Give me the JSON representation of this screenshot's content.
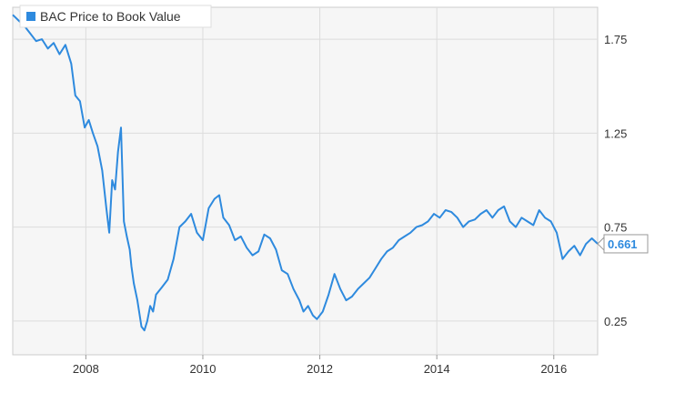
{
  "chart_data": {
    "type": "line",
    "title": "",
    "xlabel": "",
    "ylabel": "",
    "legend": {
      "placement": "top-left",
      "entries": [
        "BAC Price to Book Value"
      ]
    },
    "grid": true,
    "y_axis_side": "right",
    "xlim": [
      2006.75,
      2016.75
    ],
    "ylim": [
      0.07,
      1.92
    ],
    "x_ticks": [
      {
        "value": 2008,
        "label": "2008"
      },
      {
        "value": 2010,
        "label": "2010"
      },
      {
        "value": 2012,
        "label": "2012"
      },
      {
        "value": 2014,
        "label": "2014"
      },
      {
        "value": 2016,
        "label": "2016"
      }
    ],
    "y_ticks": [
      {
        "value": 0.25,
        "label": "0.25"
      },
      {
        "value": 0.75,
        "label": "0.75"
      },
      {
        "value": 1.25,
        "label": "1.25"
      },
      {
        "value": 1.75,
        "label": "1.75"
      }
    ],
    "last_value_label": "0.661",
    "colors": {
      "series": "#2e8ade",
      "grid": "#dcdcdc",
      "plot_bg": "#f6f6f6"
    },
    "series": [
      {
        "name": "BAC Price to Book Value",
        "x": [
          2006.75,
          2006.85,
          2006.95,
          2007.05,
          2007.15,
          2007.25,
          2007.35,
          2007.45,
          2007.55,
          2007.65,
          2007.75,
          2007.82,
          2007.9,
          2007.98,
          2008.05,
          2008.12,
          2008.2,
          2008.28,
          2008.35,
          2008.4,
          2008.45,
          2008.5,
          2008.55,
          2008.6,
          2008.65,
          2008.7,
          2008.75,
          2008.78,
          2008.82,
          2008.88,
          2008.95,
          2009.0,
          2009.05,
          2009.1,
          2009.15,
          2009.2,
          2009.3,
          2009.4,
          2009.5,
          2009.6,
          2009.7,
          2009.8,
          2009.9,
          2010.0,
          2010.1,
          2010.2,
          2010.28,
          2010.35,
          2010.45,
          2010.55,
          2010.65,
          2010.75,
          2010.85,
          2010.95,
          2011.05,
          2011.15,
          2011.25,
          2011.35,
          2011.45,
          2011.55,
          2011.65,
          2011.72,
          2011.8,
          2011.88,
          2011.95,
          2012.05,
          2012.15,
          2012.25,
          2012.35,
          2012.45,
          2012.55,
          2012.65,
          2012.75,
          2012.85,
          2012.95,
          2013.05,
          2013.15,
          2013.25,
          2013.35,
          2013.45,
          2013.55,
          2013.65,
          2013.75,
          2013.85,
          2013.95,
          2014.05,
          2014.15,
          2014.25,
          2014.35,
          2014.45,
          2014.55,
          2014.65,
          2014.75,
          2014.85,
          2014.95,
          2015.05,
          2015.15,
          2015.25,
          2015.35,
          2015.45,
          2015.55,
          2015.65,
          2015.75,
          2015.85,
          2015.95,
          2016.05,
          2016.15,
          2016.25,
          2016.35,
          2016.45,
          2016.55,
          2016.65,
          2016.75
        ],
        "values": [
          1.88,
          1.85,
          1.82,
          1.78,
          1.74,
          1.75,
          1.7,
          1.73,
          1.67,
          1.72,
          1.62,
          1.45,
          1.42,
          1.28,
          1.32,
          1.25,
          1.18,
          1.05,
          0.85,
          0.72,
          1.0,
          0.95,
          1.15,
          1.28,
          0.78,
          0.7,
          0.63,
          0.54,
          0.45,
          0.36,
          0.22,
          0.2,
          0.25,
          0.33,
          0.3,
          0.39,
          0.43,
          0.47,
          0.58,
          0.75,
          0.78,
          0.82,
          0.72,
          0.68,
          0.85,
          0.9,
          0.92,
          0.8,
          0.76,
          0.68,
          0.7,
          0.64,
          0.6,
          0.62,
          0.71,
          0.69,
          0.63,
          0.52,
          0.5,
          0.42,
          0.36,
          0.3,
          0.33,
          0.28,
          0.26,
          0.3,
          0.39,
          0.5,
          0.42,
          0.36,
          0.38,
          0.42,
          0.45,
          0.48,
          0.53,
          0.58,
          0.62,
          0.64,
          0.68,
          0.7,
          0.72,
          0.75,
          0.76,
          0.78,
          0.82,
          0.8,
          0.84,
          0.83,
          0.8,
          0.75,
          0.78,
          0.79,
          0.82,
          0.84,
          0.8,
          0.84,
          0.86,
          0.78,
          0.75,
          0.8,
          0.78,
          0.76,
          0.84,
          0.8,
          0.78,
          0.72,
          0.58,
          0.62,
          0.65,
          0.6,
          0.66,
          0.69,
          0.661
        ]
      }
    ]
  }
}
